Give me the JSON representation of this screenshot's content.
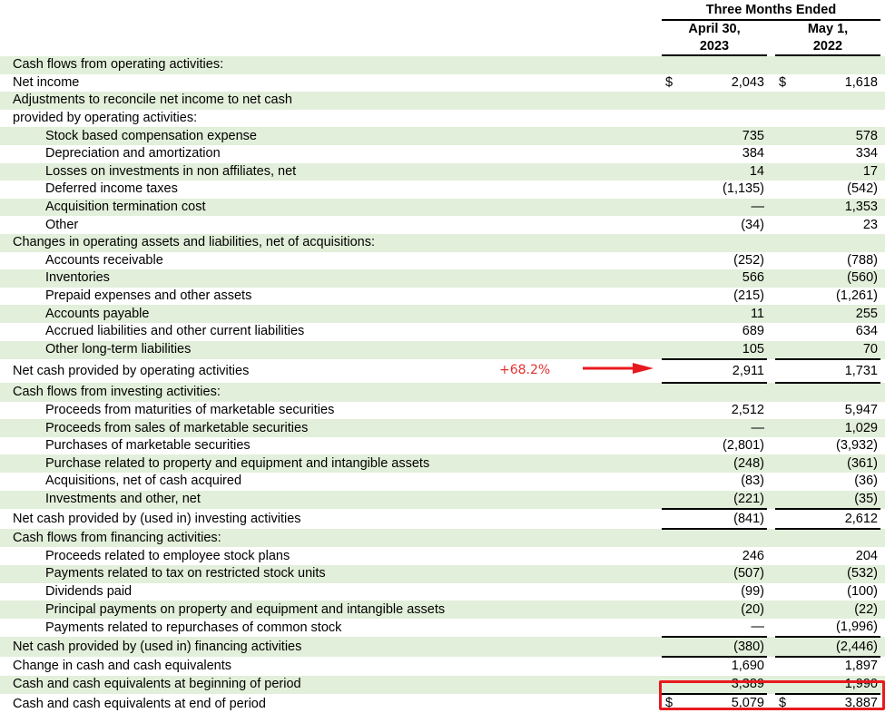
{
  "header": {
    "group": "Three Months Ended",
    "col1": [
      "April 30,",
      "2023"
    ],
    "col2": [
      "May 1,",
      "2022"
    ]
  },
  "annotation": {
    "text": "+68.2%",
    "color": "#e53030"
  },
  "rows": [
    {
      "label": "Cash flows from operating activities:",
      "indent": false,
      "cur": "",
      "v1": "",
      "v2": ""
    },
    {
      "label": "Net income",
      "indent": false,
      "cur": "$",
      "v1": "2,043",
      "v2": "1,618"
    },
    {
      "label": "Adjustments to reconcile net income to net cash",
      "indent": false,
      "cur": "",
      "v1": "",
      "v2": ""
    },
    {
      "label": "provided by operating activities:",
      "indent": false,
      "cur": "",
      "v1": "",
      "v2": ""
    },
    {
      "label": "Stock based compensation expense",
      "indent": true,
      "cur": "",
      "v1": "735",
      "v2": "578"
    },
    {
      "label": "Depreciation and amortization",
      "indent": true,
      "cur": "",
      "v1": "384",
      "v2": "334"
    },
    {
      "label": "Losses on investments in non affiliates, net",
      "indent": true,
      "cur": "",
      "v1": "14",
      "v2": "17"
    },
    {
      "label": "Deferred income taxes",
      "indent": true,
      "cur": "",
      "v1": "(1,135)",
      "v2": "(542)"
    },
    {
      "label": "Acquisition termination cost",
      "indent": true,
      "cur": "",
      "v1": "—",
      "v2": "1,353"
    },
    {
      "label": "Other",
      "indent": true,
      "cur": "",
      "v1": "(34)",
      "v2": "23"
    },
    {
      "label": "Changes in operating assets and liabilities, net of acquisitions:",
      "indent": false,
      "cur": "",
      "v1": "",
      "v2": ""
    },
    {
      "label": "Accounts receivable",
      "indent": true,
      "cur": "",
      "v1": "(252)",
      "v2": "(788)"
    },
    {
      "label": "Inventories",
      "indent": true,
      "cur": "",
      "v1": "566",
      "v2": "(560)"
    },
    {
      "label": "Prepaid expenses and other assets",
      "indent": true,
      "cur": "",
      "v1": "(215)",
      "v2": "(1,261)"
    },
    {
      "label": "Accounts payable",
      "indent": true,
      "cur": "",
      "v1": "11",
      "v2": "255"
    },
    {
      "label": "Accrued liabilities and other current liabilities",
      "indent": true,
      "cur": "",
      "v1": "689",
      "v2": "634"
    },
    {
      "label": "Other long-term liabilities",
      "indent": true,
      "cur": "",
      "v1": "105",
      "v2": "70"
    },
    {
      "label": "Net cash provided by operating activities",
      "indent": false,
      "cur": "",
      "v1": "2,911",
      "v2": "1,731",
      "total": true
    },
    {
      "label": "Cash flows from investing activities:",
      "indent": false,
      "cur": "",
      "v1": "",
      "v2": ""
    },
    {
      "label": "Proceeds from maturities of marketable securities",
      "indent": true,
      "cur": "",
      "v1": "2,512",
      "v2": "5,947"
    },
    {
      "label": "Proceeds from sales of marketable securities",
      "indent": true,
      "cur": "",
      "v1": "—",
      "v2": "1,029"
    },
    {
      "label": "Purchases of marketable securities",
      "indent": true,
      "cur": "",
      "v1": "(2,801)",
      "v2": "(3,932)"
    },
    {
      "label": "Purchase related to property and equipment and intangible assets",
      "indent": true,
      "cur": "",
      "v1": "(248)",
      "v2": "(361)"
    },
    {
      "label": "Acquisitions, net of cash acquired",
      "indent": true,
      "cur": "",
      "v1": "(83)",
      "v2": "(36)"
    },
    {
      "label": "Investments and other, net",
      "indent": true,
      "cur": "",
      "v1": "(221)",
      "v2": "(35)"
    },
    {
      "label": "Net cash provided by (used in) investing activities",
      "indent": false,
      "cur": "",
      "v1": "(841)",
      "v2": "2,612",
      "total": true
    },
    {
      "label": "Cash flows from financing activities:",
      "indent": false,
      "cur": "",
      "v1": "",
      "v2": ""
    },
    {
      "label": "Proceeds related to employee stock plans",
      "indent": true,
      "cur": "",
      "v1": "246",
      "v2": "204"
    },
    {
      "label": "Payments related to tax on restricted stock units",
      "indent": true,
      "cur": "",
      "v1": "(507)",
      "v2": "(532)"
    },
    {
      "label": "Dividends paid",
      "indent": true,
      "cur": "",
      "v1": "(99)",
      "v2": "(100)"
    },
    {
      "label": "Principal payments on property and equipment and intangible assets",
      "indent": true,
      "cur": "",
      "v1": "(20)",
      "v2": "(22)"
    },
    {
      "label": "Payments related to repurchases of common stock",
      "indent": true,
      "cur": "",
      "v1": "—",
      "v2": "(1,996)"
    },
    {
      "label": "Net cash provided by (used in) financing activities",
      "indent": false,
      "cur": "",
      "v1": "(380)",
      "v2": "(2,446)",
      "total": true
    },
    {
      "label": "Change in cash and cash equivalents",
      "indent": false,
      "cur": "",
      "v1": "1,690",
      "v2": "1,897"
    },
    {
      "label": "Cash and cash equivalents at beginning of period",
      "indent": false,
      "cur": "",
      "v1": "3,389",
      "v2": "1,990",
      "under": true
    },
    {
      "label": "Cash and cash equivalents at end of period",
      "indent": false,
      "cur": "$",
      "v1": "5,079",
      "v2": "3,887",
      "final": true
    }
  ]
}
